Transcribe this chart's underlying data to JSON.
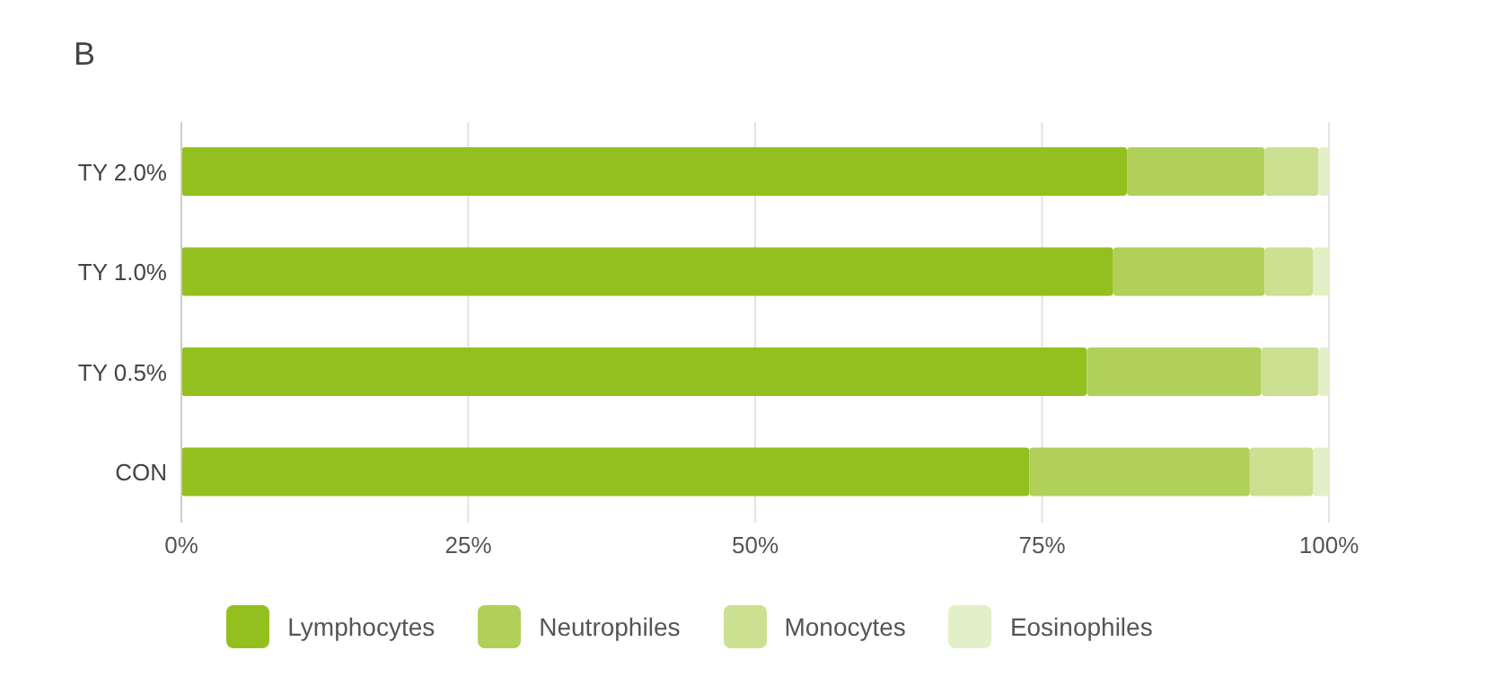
{
  "chart_data": {
    "type": "bar",
    "title": "B",
    "orientation": "horizontal",
    "stacked": true,
    "categories": [
      "TY 2.0%",
      "TY 1.0%",
      "TY 0.5%",
      "CON"
    ],
    "series": [
      {
        "name": "Lymphocytes",
        "color": "#93c01f",
        "values": [
          82.4,
          81.2,
          78.9,
          73.9
        ]
      },
      {
        "name": "Neutrophiles",
        "color": "#b0d05a",
        "values": [
          12.0,
          13.2,
          15.2,
          19.2
        ]
      },
      {
        "name": "Monocytes",
        "color": "#cbe091",
        "values": [
          4.7,
          4.2,
          5.0,
          5.5
        ]
      },
      {
        "name": "Eosinophiles",
        "color": "#e3efc6",
        "values": [
          0.9,
          1.4,
          0.9,
          1.4
        ]
      }
    ],
    "xlim": [
      0,
      100
    ],
    "xticks": [
      {
        "value": 0,
        "label": "0%"
      },
      {
        "value": 25,
        "label": "25%"
      },
      {
        "value": 50,
        "label": "50%"
      },
      {
        "value": 75,
        "label": "75%"
      },
      {
        "value": 100,
        "label": "100%"
      }
    ],
    "grid": "x",
    "legend": "bottom"
  }
}
